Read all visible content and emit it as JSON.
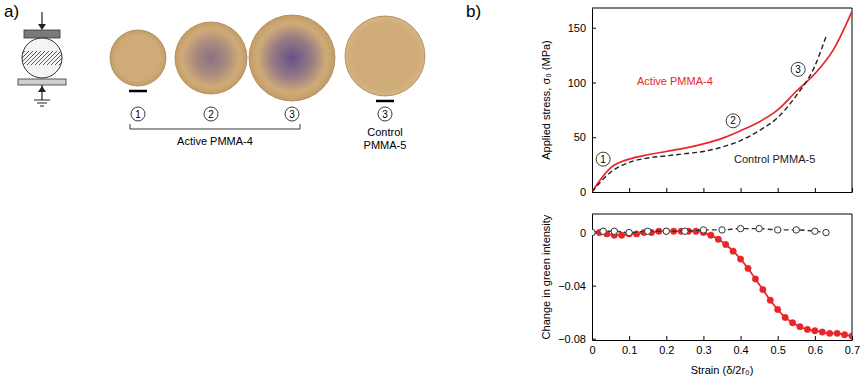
{
  "panel_a": {
    "label": "a)",
    "groups": [
      {
        "name": "Active PMMA-4",
        "stages": [
          "1",
          "2",
          "3"
        ]
      },
      {
        "name": "Control PMMA-5",
        "stages": [
          "3"
        ]
      }
    ]
  },
  "panel_b": {
    "label": "b)"
  },
  "chart_data": [
    {
      "type": "line",
      "y_label": "Applied stress, σ₀ (MPa)",
      "xlim": [
        0,
        0.7
      ],
      "xticks": [
        0,
        0.1,
        0.2,
        0.3,
        0.4,
        0.5,
        0.6,
        0.7
      ],
      "ylim": [
        0,
        168
      ],
      "yticks": [
        0,
        50,
        100,
        150
      ],
      "tick_labels": "y",
      "series": [
        {
          "name": "Active PMMA-4",
          "color": "#e8262a",
          "line_style": "solid",
          "x": [
            0,
            0.02,
            0.05,
            0.1,
            0.15,
            0.2,
            0.25,
            0.3,
            0.35,
            0.4,
            0.45,
            0.5,
            0.55,
            0.6,
            0.65,
            0.7
          ],
          "values": [
            0,
            10,
            22,
            30,
            34,
            37,
            40,
            44,
            49,
            56,
            64,
            75,
            92,
            108,
            130,
            165
          ]
        },
        {
          "name": "Control PMMA-5",
          "color": "#222222",
          "line_style": "dashed",
          "x": [
            0,
            0.05,
            0.1,
            0.15,
            0.2,
            0.25,
            0.3,
            0.35,
            0.4,
            0.45,
            0.5,
            0.55,
            0.6,
            0.63
          ],
          "values": [
            0,
            18,
            27,
            31,
            33,
            35,
            37,
            41,
            47,
            56,
            68,
            88,
            115,
            142
          ]
        }
      ],
      "annotations": [
        {
          "text": "1",
          "x": 0.03,
          "y": 30
        },
        {
          "text": "2",
          "x": 0.38,
          "y": 65
        },
        {
          "text": "3",
          "x": 0.555,
          "y": 112
        }
      ]
    },
    {
      "type": "line",
      "x_label": "Strain (δ/2r₀)",
      "y_label": "Change in green intensity",
      "xlim": [
        0,
        0.7
      ],
      "xticks": [
        0,
        0.1,
        0.2,
        0.3,
        0.4,
        0.5,
        0.6,
        0.7
      ],
      "ylim": [
        -0.081,
        0.014
      ],
      "yticks": [
        0,
        {
          "value": -0.04,
          "label": "−0.04"
        },
        {
          "value": -0.08,
          "label": "−0.08"
        }
      ],
      "series": [
        {
          "color": "#e8262a",
          "line_style": "solid",
          "marker": "filled-circle",
          "x": [
            0,
            0.02,
            0.04,
            0.06,
            0.08,
            0.1,
            0.12,
            0.14,
            0.16,
            0.18,
            0.2,
            0.22,
            0.24,
            0.26,
            0.28,
            0.3,
            0.32,
            0.34,
            0.36,
            0.38,
            0.4,
            0.42,
            0.44,
            0.46,
            0.48,
            0.5,
            0.52,
            0.54,
            0.56,
            0.58,
            0.6,
            0.62,
            0.64,
            0.66,
            0.68,
            0.7
          ],
          "values": [
            0,
            0,
            -0.001,
            -0.002,
            -0.002,
            -0.001,
            -0.001,
            0,
            0,
            0.001,
            0.001,
            0.001,
            0.001,
            0.001,
            0.001,
            0,
            -0.002,
            -0.005,
            -0.009,
            -0.014,
            -0.02,
            -0.027,
            -0.035,
            -0.043,
            -0.051,
            -0.058,
            -0.064,
            -0.068,
            -0.071,
            -0.073,
            -0.074,
            -0.075,
            -0.076,
            -0.076,
            -0.077,
            -0.078
          ]
        },
        {
          "color": "#333333",
          "line_style": "dashed",
          "marker": "open-circle",
          "x": [
            0,
            0.03,
            0.06,
            0.1,
            0.15,
            0.2,
            0.25,
            0.3,
            0.35,
            0.4,
            0.45,
            0.5,
            0.55,
            0.6,
            0.63
          ],
          "values": [
            0,
            0.001,
            0.001,
            0,
            0.001,
            0.001,
            0.001,
            0.002,
            0.002,
            0.003,
            0.003,
            0.002,
            0.002,
            0.001,
            0
          ]
        }
      ]
    }
  ]
}
